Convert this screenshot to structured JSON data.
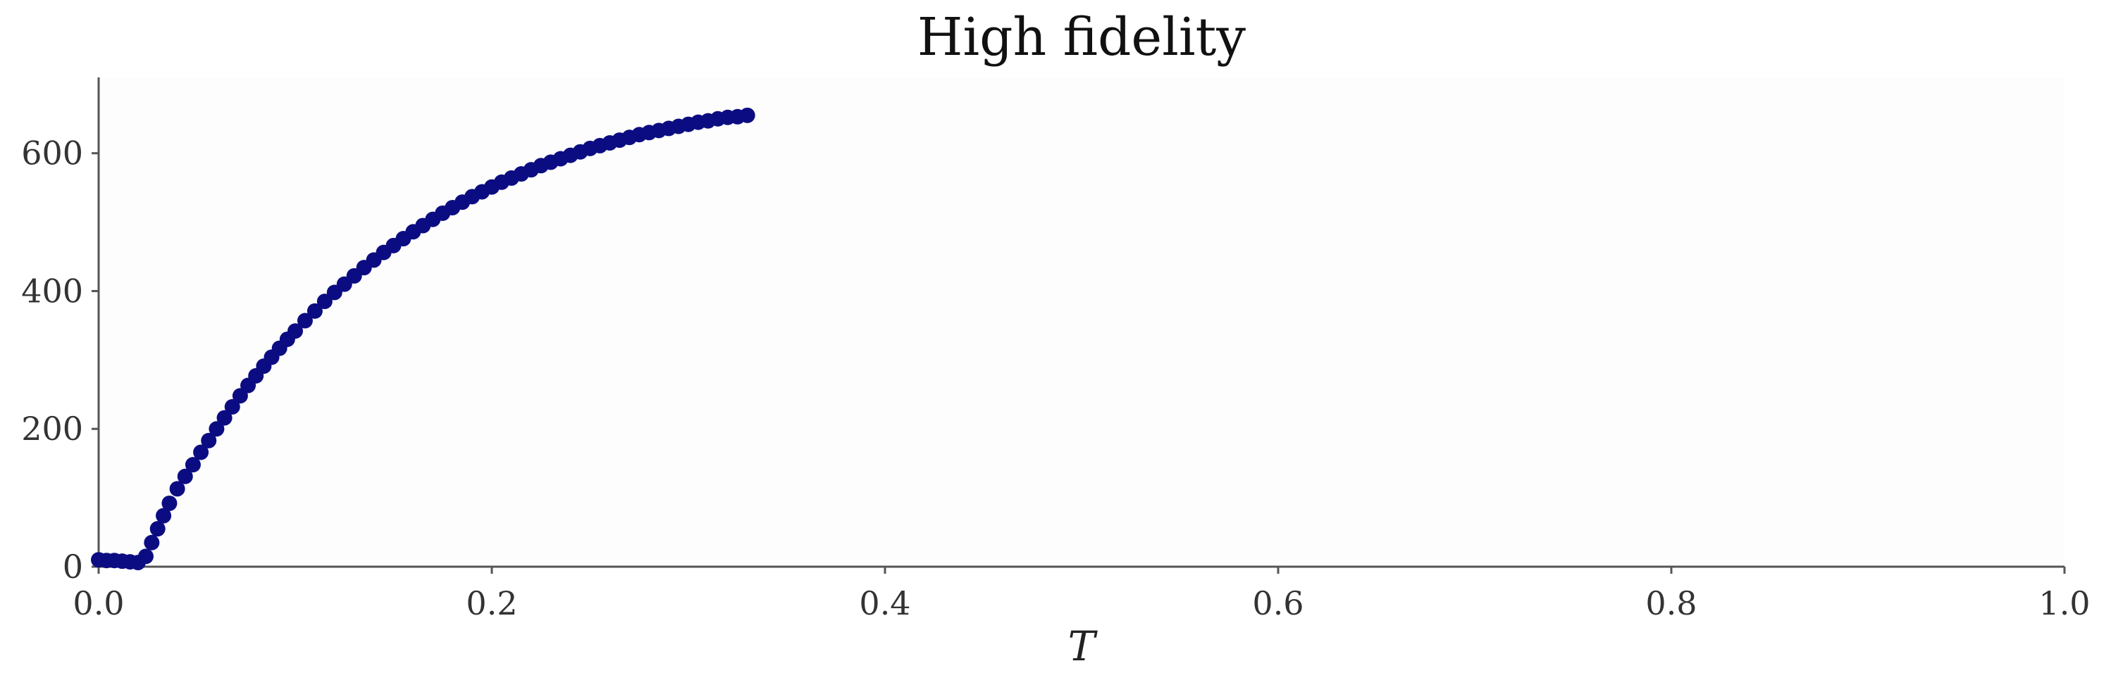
{
  "chart_data": {
    "type": "scatter",
    "title": "High fidelity",
    "xlabel": "T",
    "ylabel": "",
    "xlim": [
      0.0,
      1.0
    ],
    "ylim": [
      0,
      710
    ],
    "xticks": [
      "0.0",
      "0.2",
      "0.4",
      "0.6",
      "0.8",
      "1.0"
    ],
    "yticks": [
      "0",
      "200",
      "400",
      "600"
    ],
    "grid": false,
    "marker_color": "#0c0c82",
    "background_color": "#fdfdfd",
    "series": [
      {
        "points": [
          [
            0.0,
            10
          ],
          [
            0.004,
            9
          ],
          [
            0.008,
            9
          ],
          [
            0.012,
            8
          ],
          [
            0.016,
            7
          ],
          [
            0.02,
            6
          ],
          [
            0.024,
            15
          ],
          [
            0.027,
            35
          ],
          [
            0.03,
            55
          ],
          [
            0.033,
            74
          ],
          [
            0.036,
            92
          ],
          [
            0.04,
            113
          ],
          [
            0.044,
            131
          ],
          [
            0.048,
            148
          ],
          [
            0.052,
            166
          ],
          [
            0.056,
            183
          ],
          [
            0.06,
            200
          ],
          [
            0.064,
            216
          ],
          [
            0.068,
            232
          ],
          [
            0.072,
            248
          ],
          [
            0.076,
            263
          ],
          [
            0.08,
            277
          ],
          [
            0.084,
            291
          ],
          [
            0.088,
            304
          ],
          [
            0.092,
            317
          ],
          [
            0.096,
            330
          ],
          [
            0.1,
            342
          ],
          [
            0.105,
            357
          ],
          [
            0.11,
            371
          ],
          [
            0.115,
            385
          ],
          [
            0.12,
            398
          ],
          [
            0.125,
            410
          ],
          [
            0.13,
            422
          ],
          [
            0.135,
            434
          ],
          [
            0.14,
            445
          ],
          [
            0.145,
            456
          ],
          [
            0.15,
            466
          ],
          [
            0.155,
            476
          ],
          [
            0.16,
            486
          ],
          [
            0.165,
            495
          ],
          [
            0.17,
            504
          ],
          [
            0.175,
            513
          ],
          [
            0.18,
            521
          ],
          [
            0.185,
            529
          ],
          [
            0.19,
            537
          ],
          [
            0.195,
            544
          ],
          [
            0.2,
            551
          ],
          [
            0.205,
            558
          ],
          [
            0.21,
            564
          ],
          [
            0.215,
            570
          ],
          [
            0.22,
            576
          ],
          [
            0.225,
            582
          ],
          [
            0.23,
            587
          ],
          [
            0.235,
            592
          ],
          [
            0.24,
            597
          ],
          [
            0.245,
            602
          ],
          [
            0.25,
            607
          ],
          [
            0.255,
            611
          ],
          [
            0.26,
            615
          ],
          [
            0.265,
            619
          ],
          [
            0.27,
            623
          ],
          [
            0.275,
            627
          ],
          [
            0.28,
            630
          ],
          [
            0.285,
            633
          ],
          [
            0.29,
            636
          ],
          [
            0.295,
            639
          ],
          [
            0.3,
            642
          ],
          [
            0.305,
            645
          ],
          [
            0.31,
            647
          ],
          [
            0.315,
            650
          ],
          [
            0.32,
            652
          ],
          [
            0.325,
            653
          ],
          [
            0.33,
            655
          ]
        ]
      }
    ]
  }
}
